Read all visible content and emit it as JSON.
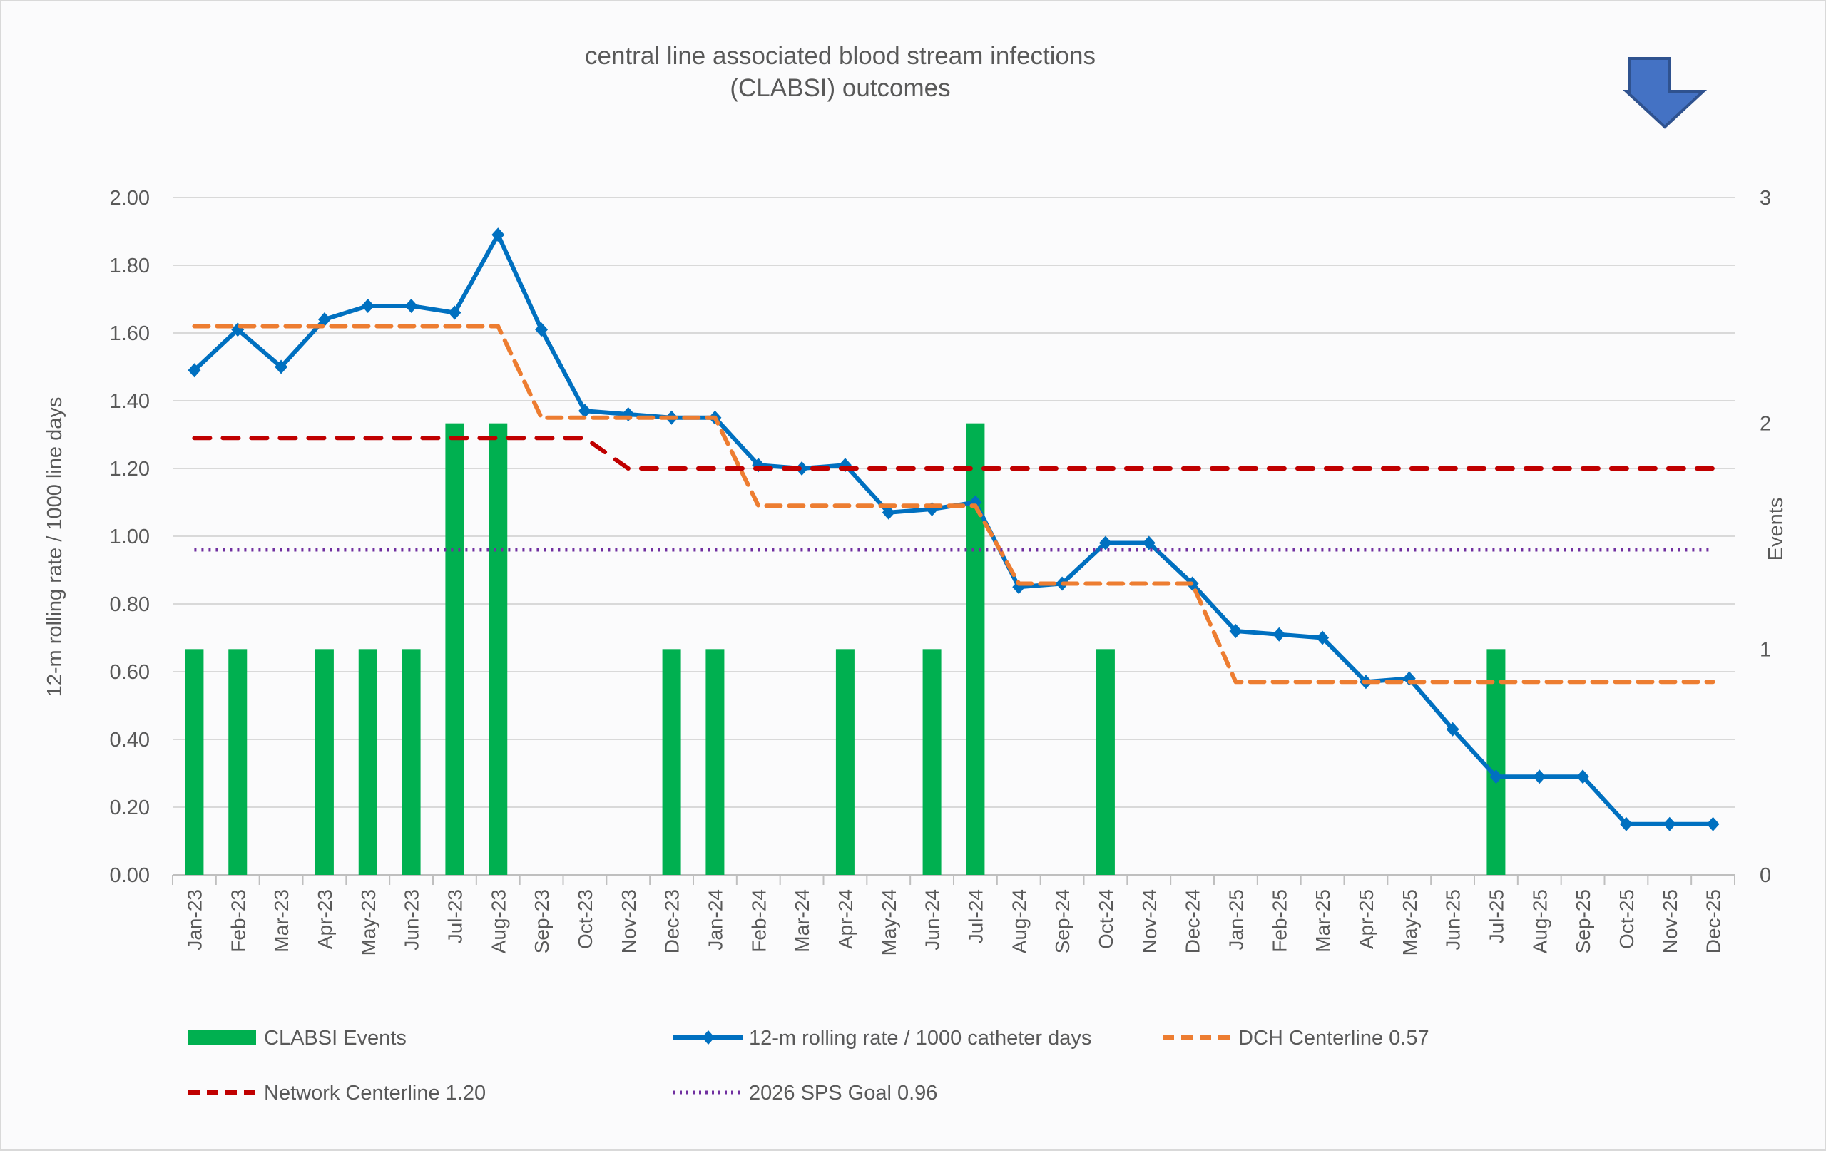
{
  "chart_data": {
    "type": "bar+line",
    "title": [
      "central line associated blood stream infections",
      "(CLABSI) outcomes"
    ],
    "ylabel": "12-m rolling rate / 1000 line days",
    "y2label": "Events",
    "ylim": [
      0,
      2.0
    ],
    "y2lim": [
      0,
      3
    ],
    "yticks": [
      "0.00",
      "0.20",
      "0.40",
      "0.60",
      "0.80",
      "1.00",
      "1.20",
      "1.40",
      "1.60",
      "1.80",
      "2.00"
    ],
    "y2ticks": [
      "0",
      "1",
      "2",
      "3"
    ],
    "grid": true,
    "legend_position": "bottom",
    "categories": [
      "Jan-23",
      "Feb-23",
      "Mar-23",
      "Apr-23",
      "May-23",
      "Jun-23",
      "Jul-23",
      "Aug-23",
      "Sep-23",
      "Oct-23",
      "Nov-23",
      "Dec-23",
      "Jan-24",
      "Feb-24",
      "Mar-24",
      "Apr-24",
      "May-24",
      "Jun-24",
      "Jul-24",
      "Aug-24",
      "Sep-24",
      "Oct-24",
      "Nov-24",
      "Dec-24",
      "Jan-25",
      "Feb-25",
      "Mar-25",
      "Apr-25",
      "May-25",
      "Jun-25",
      "Jul-25",
      "Aug-25",
      "Sep-25",
      "Oct-25",
      "Nov-25",
      "Dec-25"
    ],
    "series": [
      {
        "name": "CLABSI Events",
        "type": "bar",
        "axis": "right",
        "color": "#00b050",
        "values": [
          1,
          1,
          0,
          1,
          1,
          1,
          2,
          2,
          0,
          0,
          0,
          1,
          1,
          0,
          0,
          1,
          0,
          1,
          2,
          0,
          0,
          1,
          0,
          0,
          0,
          0,
          0,
          0,
          0,
          0,
          1,
          0,
          0,
          0,
          0,
          0
        ]
      },
      {
        "name": "12-m rolling rate / 1000 catheter days",
        "type": "line",
        "axis": "left",
        "color": "#0070c0",
        "marker": "diamond",
        "values": [
          1.49,
          1.61,
          1.5,
          1.64,
          1.68,
          1.68,
          1.66,
          1.89,
          1.61,
          1.37,
          1.36,
          1.35,
          1.35,
          1.21,
          1.2,
          1.21,
          1.07,
          1.08,
          1.1,
          0.85,
          0.86,
          0.98,
          0.98,
          0.86,
          0.72,
          0.71,
          0.7,
          0.57,
          0.58,
          0.43,
          0.29,
          0.29,
          0.29,
          0.15,
          0.15,
          0.15
        ]
      },
      {
        "name": "DCH Centerline 0.57",
        "type": "line",
        "axis": "left",
        "color": "#ed7d31",
        "dash": "dashed",
        "values": [
          1.62,
          1.62,
          1.62,
          1.62,
          1.62,
          1.62,
          1.62,
          1.62,
          1.35,
          1.35,
          1.35,
          1.35,
          1.35,
          1.09,
          1.09,
          1.09,
          1.09,
          1.09,
          1.09,
          0.86,
          0.86,
          0.86,
          0.86,
          0.86,
          0.57,
          0.57,
          0.57,
          0.57,
          0.57,
          0.57,
          0.57,
          0.57,
          0.57,
          0.57,
          0.57,
          0.57
        ]
      },
      {
        "name": "Network Centerline 1.20",
        "type": "line",
        "axis": "left",
        "color": "#c00000",
        "dash": "dashed",
        "values": [
          1.29,
          1.29,
          1.29,
          1.29,
          1.29,
          1.29,
          1.29,
          1.29,
          1.29,
          1.29,
          1.2,
          1.2,
          1.2,
          1.2,
          1.2,
          1.2,
          1.2,
          1.2,
          1.2,
          1.2,
          1.2,
          1.2,
          1.2,
          1.2,
          1.2,
          1.2,
          1.2,
          1.2,
          1.2,
          1.2,
          1.2,
          1.2,
          1.2,
          1.2,
          1.2,
          1.2
        ]
      },
      {
        "name": "2026 SPS Goal 0.96",
        "type": "line",
        "axis": "left",
        "color": "#7030a0",
        "dash": "dotted",
        "values": [
          0.96,
          0.96,
          0.96,
          0.96,
          0.96,
          0.96,
          0.96,
          0.96,
          0.96,
          0.96,
          0.96,
          0.96,
          0.96,
          0.96,
          0.96,
          0.96,
          0.96,
          0.96,
          0.96,
          0.96,
          0.96,
          0.96,
          0.96,
          0.96,
          0.96,
          0.96,
          0.96,
          0.96,
          0.96,
          0.96,
          0.96,
          0.96,
          0.96,
          0.96,
          0.96,
          0.96
        ]
      }
    ],
    "annotations": [
      {
        "icon": "down-arrow-icon",
        "meaning": "lower is better",
        "color": "#4472c4"
      }
    ]
  }
}
